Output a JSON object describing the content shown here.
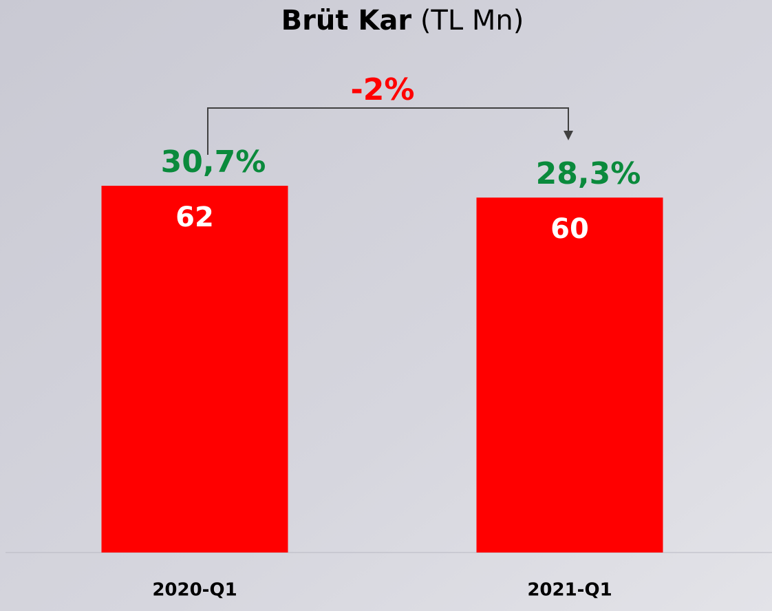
{
  "chart_data": {
    "type": "bar",
    "title": "Brüt Kar",
    "title_unit": "(TL Mn)",
    "categories": [
      "2020-Q1",
      "2021-Q1"
    ],
    "values": [
      62,
      60
    ],
    "color": "#ff0000",
    "ylim": [
      0,
      72
    ],
    "margin_labels": [
      "30,7%",
      "28,3%"
    ],
    "change_label": "-2%"
  }
}
